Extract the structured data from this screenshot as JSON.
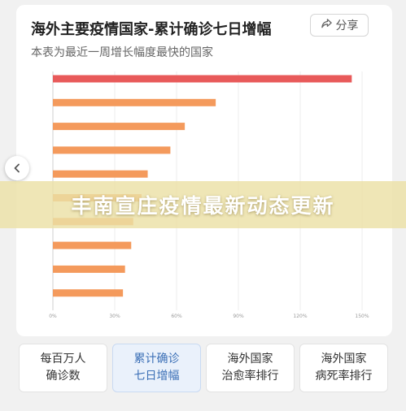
{
  "header": {
    "title": "海外主要疫情国家-累计确诊七日增幅",
    "subtitle": "本表为最近一周增长幅度最快的国家",
    "share_label": "分享"
  },
  "banner": {
    "text": "丰南宣庄疫情最新动态更新"
  },
  "chart_data": {
    "type": "bar",
    "orientation": "horizontal",
    "categories": [
      "",
      "",
      "",
      "",
      "",
      "",
      "",
      "",
      "",
      ""
    ],
    "values": [
      145,
      79,
      64,
      57,
      46,
      43,
      39,
      38,
      35,
      34
    ],
    "value_unit": "%",
    "xlim": [
      0,
      150
    ],
    "x_ticks": [
      "0%",
      "30%",
      "60%",
      "90%",
      "120%",
      "150%"
    ],
    "bar_colors": [
      "#e85a5a",
      "#f49a5c",
      "#f49a5c",
      "#f49a5c",
      "#f49a5c",
      "#f49a5c",
      "#f49a5c",
      "#f49a5c",
      "#f49a5c",
      "#f49a5c"
    ],
    "grid": true
  },
  "tabs": [
    {
      "line1": "每百万人",
      "line2": "确诊数",
      "active": false
    },
    {
      "line1": "累计确诊",
      "line2": "七日增幅",
      "active": true
    },
    {
      "line1": "海外国家",
      "line2": "治愈率排行",
      "active": false
    },
    {
      "line1": "海外国家",
      "line2": "病死率排行",
      "active": false
    }
  ]
}
